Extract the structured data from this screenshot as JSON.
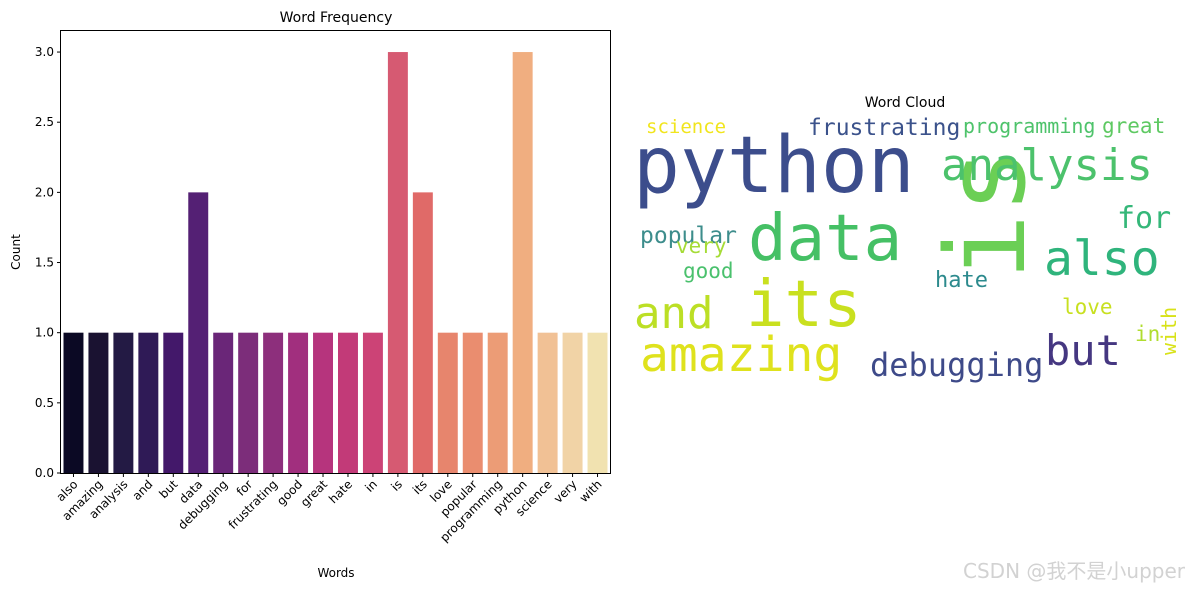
{
  "chart_data": [
    {
      "type": "bar",
      "title": "Word Frequency",
      "xlabel": "Words",
      "ylabel": "Count",
      "ylim": [
        0,
        3.15
      ],
      "yticks": [
        "0.0",
        "0.5",
        "1.0",
        "1.5",
        "2.0",
        "2.5",
        "3.0"
      ],
      "categories": [
        "also",
        "amazing",
        "analysis",
        "and",
        "but",
        "data",
        "debugging",
        "for",
        "frustrating",
        "good",
        "great",
        "hate",
        "in",
        "is",
        "its",
        "love",
        "popular",
        "programming",
        "python",
        "science",
        "very",
        "with"
      ],
      "values": [
        1,
        1,
        1,
        1,
        1,
        2,
        1,
        1,
        1,
        1,
        1,
        1,
        1,
        3,
        2,
        1,
        1,
        1,
        3,
        1,
        1,
        1
      ],
      "colors": [
        "#0b0924",
        "#1a1231",
        "#231a44",
        "#2f1a56",
        "#43186a",
        "#542074",
        "#6a2678",
        "#7c2d7a",
        "#8d2f7c",
        "#a12f7e",
        "#b6347d",
        "#c23a78",
        "#cc4376",
        "#d65a72",
        "#e06a68",
        "#e7856d",
        "#ea8d6f",
        "#ec9c76",
        "#f0ae80",
        "#f1c195",
        "#f1d3a6",
        "#f1e2b0"
      ],
      "grid": false
    },
    {
      "type": "wordcloud",
      "title": "Word Cloud",
      "words": [
        {
          "text": "python",
          "color": "#3c4d8c",
          "rotate": false
        },
        {
          "text": "is",
          "color": "#6bcf55",
          "rotate": true
        },
        {
          "text": "data",
          "color": "#45c065",
          "rotate": false
        },
        {
          "text": "its",
          "color": "#c9e01f",
          "rotate": false
        },
        {
          "text": "amazing",
          "color": "#dfe21d",
          "rotate": false
        },
        {
          "text": "analysis",
          "color": "#4cc26c",
          "rotate": false
        },
        {
          "text": "also",
          "color": "#2fb47c",
          "rotate": false
        },
        {
          "text": "and",
          "color": "#bcdf25",
          "rotate": false
        },
        {
          "text": "but",
          "color": "#453781",
          "rotate": false
        },
        {
          "text": "debugging",
          "color": "#3e4a89",
          "rotate": false
        },
        {
          "text": "frustrating",
          "color": "#3b528b",
          "rotate": false
        },
        {
          "text": "programming",
          "color": "#4ec36b",
          "rotate": false
        },
        {
          "text": "great",
          "color": "#5ec962",
          "rotate": false
        },
        {
          "text": "science",
          "color": "#f1e51d",
          "rotate": false
        },
        {
          "text": "for",
          "color": "#35b779",
          "rotate": false
        },
        {
          "text": "popular",
          "color": "#3d8d8c",
          "rotate": false
        },
        {
          "text": "very",
          "color": "#a5db36",
          "rotate": false
        },
        {
          "text": "good",
          "color": "#4ac16d",
          "rotate": false
        },
        {
          "text": "hate",
          "color": "#2c8a8d",
          "rotate": false
        },
        {
          "text": "love",
          "color": "#c8e020",
          "rotate": false
        },
        {
          "text": "in",
          "color": "#b0dd2f",
          "rotate": false
        },
        {
          "text": "with",
          "color": "#d8e219",
          "rotate": true
        }
      ]
    }
  ],
  "watermark": "CSDN @我不是小upper"
}
